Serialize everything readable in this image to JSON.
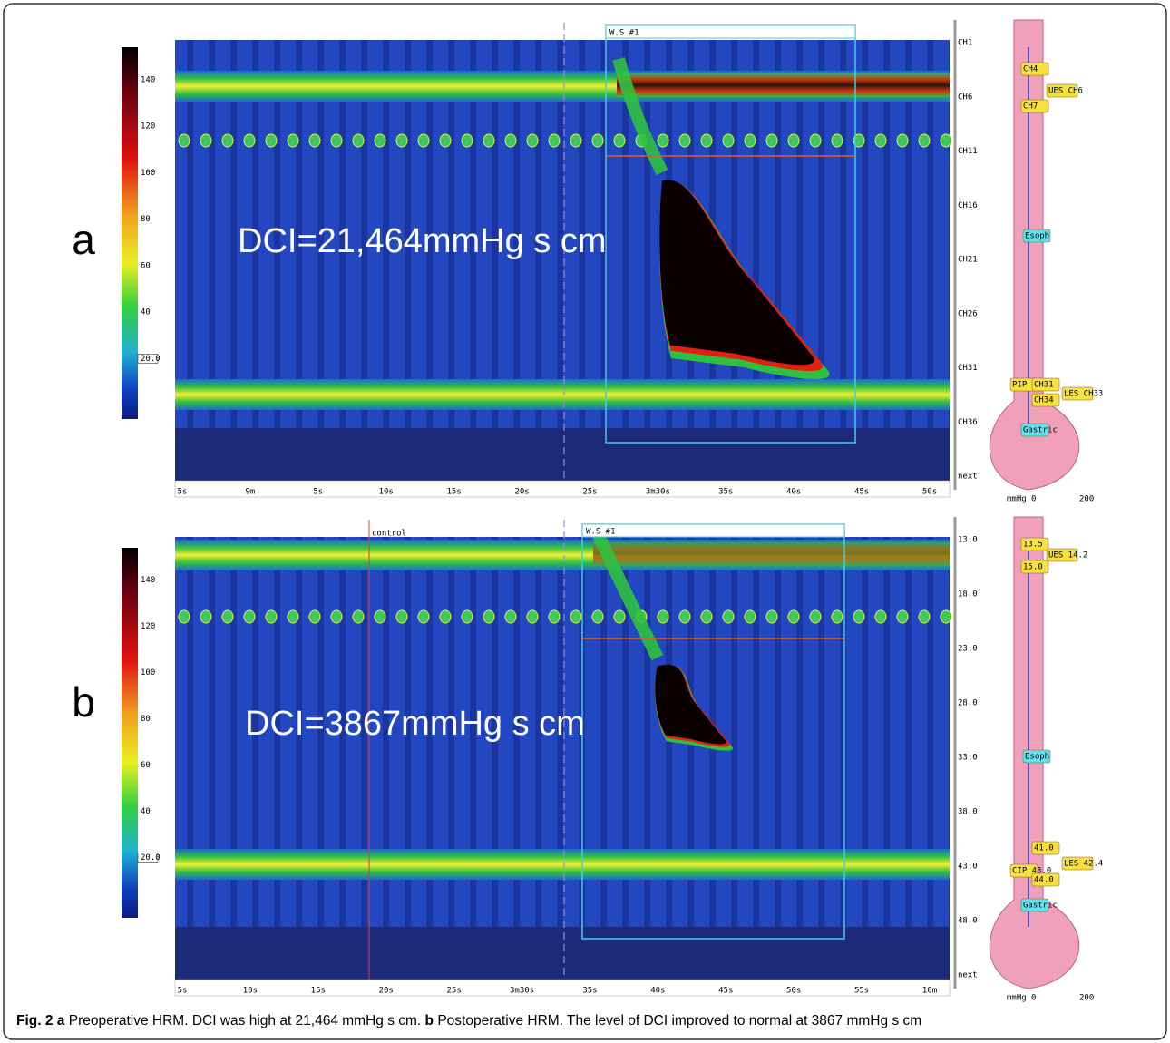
{
  "panels": [
    {
      "label": "a",
      "annotation": "DCI=21,464mmHg s cm",
      "window": "W.S #1",
      "colorbar_ticks": [
        "140",
        "120",
        "100",
        "80",
        "60",
        "40",
        "20.0"
      ],
      "time_labels": [
        "5s",
        "9m",
        "5s",
        "10s",
        "15s",
        "20s",
        "25s",
        "3m30s",
        "35s",
        "40s",
        "45s",
        "50s"
      ],
      "channel_labels": [
        "CH1",
        "CH6",
        "CH11",
        "CH16",
        "CH21",
        "CH26",
        "CH31",
        "CH36",
        "next"
      ],
      "tags": [
        "CH4",
        "UES CH6",
        "CH7",
        "Esoph",
        "PIP CH32",
        "CH31",
        "CH34",
        "LES CH33",
        "Gastric"
      ],
      "scale": [
        "mmHg",
        "0",
        "200"
      ]
    },
    {
      "label": "b",
      "annotation": "DCI=3867mmHg s cm",
      "window": "W.S #1",
      "marker": "control",
      "colorbar_ticks": [
        "140",
        "120",
        "100",
        "80",
        "60",
        "40",
        "20.0"
      ],
      "time_labels": [
        "5s",
        "10s",
        "15s",
        "20s",
        "25s",
        "3m30s",
        "35s",
        "40s",
        "45s",
        "50s",
        "55s",
        "10m"
      ],
      "channel_labels": [
        "13.0",
        "18.0",
        "23.0",
        "28.0",
        "33.0",
        "38.0",
        "43.0",
        "48.0",
        "next"
      ],
      "tags": [
        "13.5",
        "UES 14.2",
        "15.0",
        "Esoph",
        "CIP 43.0",
        "41.0",
        "44.0",
        "LES 42.4",
        "Gastric"
      ],
      "scale": [
        "mmHg",
        "0",
        "200"
      ]
    }
  ],
  "caption": {
    "figure": "Fig. 2",
    "a_label": "a",
    "a_text": "Preoperative HRM. DCI was high at 21,464 mmHg s cm.",
    "b_label": "b",
    "b_text": "Postoperative HRM. The level of DCI improved to normal at 3867 mmHg s cm"
  }
}
